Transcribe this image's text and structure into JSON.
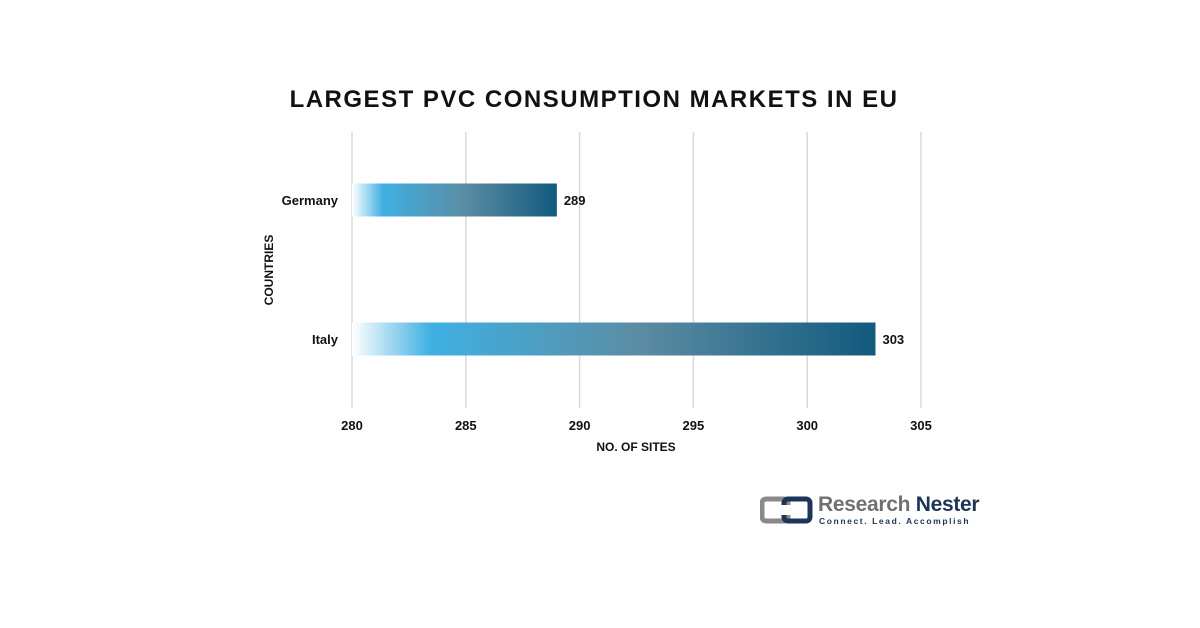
{
  "chart_data": {
    "type": "bar",
    "orientation": "horizontal",
    "title": "LARGEST PVC CONSUMPTION MARKETS IN EU",
    "xlabel": "NO. OF SITES",
    "ylabel": "COUNTRIES",
    "categories": [
      "Germany",
      "Italy"
    ],
    "values": [
      289,
      303
    ],
    "data_labels": [
      "289",
      "303"
    ],
    "xlim": [
      280,
      305
    ],
    "xticks": [
      280,
      285,
      290,
      295,
      300,
      305
    ],
    "xtick_labels": [
      "280",
      "285",
      "290",
      "295",
      "300",
      "305"
    ],
    "grid": true,
    "legend": "none",
    "bar_gradient": [
      "#ffffff",
      "#3fb0e3",
      "#5b8ca3",
      "#125a7e"
    ]
  },
  "branding": {
    "name_part1": "Research",
    "name_part2": "Nester",
    "tagline": "Connect. Lead. Accomplish",
    "colors": {
      "gray": "#707070",
      "navy": "#1d3557"
    }
  }
}
